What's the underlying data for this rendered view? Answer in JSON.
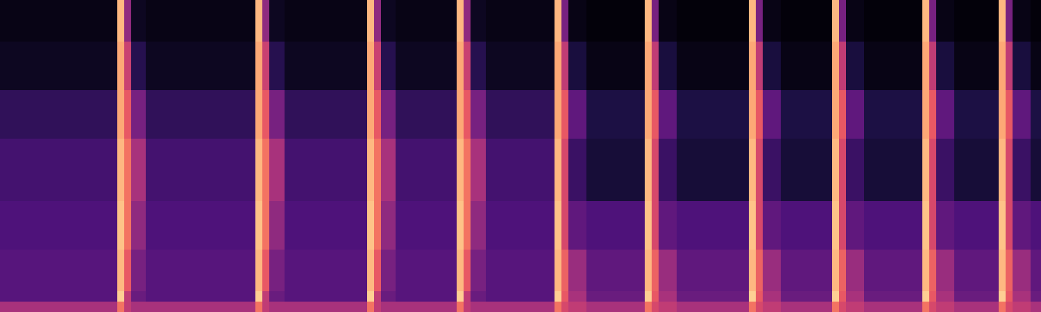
{
  "chart_data": {
    "type": "heatmap",
    "x": [
      0,
      169,
      179,
      189,
      210,
      368,
      378,
      388,
      410,
      529,
      539,
      549,
      570,
      658,
      668,
      678,
      700,
      799,
      809,
      819,
      845,
      929,
      939,
      949,
      975,
      1079,
      1089,
      1099,
      1125,
      1199,
      1209,
      1219,
      1245,
      1329,
      1339,
      1349,
      1375,
      1439,
      1449,
      1459,
      1485,
      1500
    ],
    "y": [
      0,
      15,
      30,
      90,
      160,
      250,
      320,
      390,
      450
    ],
    "z": [
      [
        -45,
        -25,
        -40,
        -45,
        -45,
        -25,
        -40,
        -45,
        -45,
        -25,
        -40,
        -45,
        -45,
        -25,
        -40,
        -45,
        -45,
        -25,
        -35,
        -40,
        -45,
        -25,
        -35,
        -40,
        -45,
        -25,
        -35,
        -40,
        -45,
        -25,
        -35,
        -40,
        -45,
        -25,
        -35,
        -40,
        -45,
        -25,
        -35,
        -40,
        -45
      ],
      [
        -62,
        -8,
        -40,
        -58,
        -62,
        -8,
        -40,
        -58,
        -62,
        -8,
        -40,
        -58,
        -62,
        -8,
        -40,
        -58,
        -62,
        -8,
        -30,
        -45,
        -58,
        -8,
        -30,
        -45,
        -58,
        -8,
        -30,
        -45,
        -58,
        -8,
        -30,
        -45,
        -58,
        -8,
        -30,
        -45,
        -58,
        -8,
        -30,
        -45,
        -58
      ],
      [
        -62,
        -12,
        -30,
        -55,
        -62,
        -12,
        -30,
        -55,
        -62,
        -12,
        -30,
        -55,
        -62,
        -12,
        -30,
        -55,
        -62,
        -12,
        -28,
        -48,
        -60,
        -12,
        -28,
        -48,
        -60,
        -12,
        -28,
        -48,
        -60,
        -12,
        -28,
        -48,
        -60,
        -12,
        -28,
        -48,
        -60,
        -12,
        -28,
        -48,
        -60
      ],
      [
        -64,
        -10,
        -25,
        -50,
        -64,
        -10,
        -25,
        -50,
        -64,
        -10,
        -25,
        -50,
        -64,
        -10,
        -25,
        -50,
        -64,
        -10,
        -35,
        -60,
        -64,
        -10,
        -35,
        -60,
        -64,
        -10,
        -35,
        -60,
        -64,
        -10,
        -35,
        -60,
        -64,
        -10,
        -35,
        -60,
        -64,
        -10,
        -35,
        -60,
        -64
      ],
      [
        -66,
        -12,
        -25,
        -45,
        -66,
        -12,
        -25,
        -45,
        -66,
        -12,
        -25,
        -45,
        -66,
        -12,
        -25,
        -45,
        -66,
        -12,
        -35,
        -68,
        -76,
        -12,
        -35,
        -68,
        -76,
        -12,
        -35,
        -68,
        -76,
        -12,
        -35,
        -68,
        -76,
        -12,
        -35,
        -68,
        -76,
        -12,
        -35,
        -68,
        -76
      ],
      [
        -70,
        -15,
        -30,
        -55,
        -70,
        -15,
        -30,
        -55,
        -70,
        -15,
        -30,
        -55,
        -70,
        -15,
        -30,
        -55,
        -70,
        -15,
        -30,
        -60,
        -74,
        -15,
        -30,
        -60,
        -74,
        -15,
        -30,
        -60,
        -74,
        -15,
        -30,
        -60,
        -74,
        -15,
        -30,
        -60,
        -74,
        -15,
        -30,
        -60,
        -74
      ],
      [
        -80,
        -15,
        -38,
        -72,
        -80,
        -15,
        -38,
        -72,
        -80,
        -15,
        -38,
        -72,
        -80,
        -15,
        -38,
        -72,
        -80,
        -15,
        -40,
        -75,
        -82,
        -15,
        -40,
        -75,
        -82,
        -15,
        -40,
        -75,
        -82,
        -15,
        -40,
        -75,
        -82,
        -15,
        -40,
        -75,
        -82,
        -15,
        -40,
        -75,
        -82
      ],
      [
        -82,
        -12,
        -50,
        -80,
        -82,
        -12,
        -50,
        -80,
        -82,
        -12,
        -50,
        -80,
        -82,
        -12,
        -50,
        -80,
        -82,
        -12,
        -55,
        -82,
        -84,
        -12,
        -55,
        -82,
        -84,
        -12,
        -55,
        -82,
        -84,
        -12,
        -55,
        -82,
        -84,
        -12,
        -55,
        -82,
        -84,
        -12,
        -55,
        -82,
        -84
      ]
    ],
    "zlim": [
      -85,
      0
    ],
    "xlim": [
      0,
      1500
    ],
    "ylim": [
      0,
      450
    ],
    "tick_labels": false,
    "grid": false
  }
}
